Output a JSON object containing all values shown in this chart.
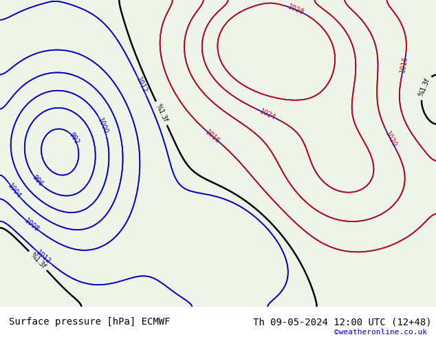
{
  "title_left": "Surface pressure [hPa] ECMWF",
  "title_right": "Th 09-05-2024 12:00 UTC (12+48)",
  "credit": "©weatheronline.co.uk",
  "bg_color": "#e8f4e8",
  "land_color": "#c8e6c8",
  "sea_color": "#ddeedd",
  "footer_bg": "#f0f0f0",
  "footer_text_color": "#000000",
  "credit_color": "#0000cc",
  "contour_blue_color": "#0000cc",
  "contour_red_color": "#cc0000",
  "contour_black_color": "#000000",
  "figsize": [
    6.34,
    4.9
  ],
  "dpi": 100
}
